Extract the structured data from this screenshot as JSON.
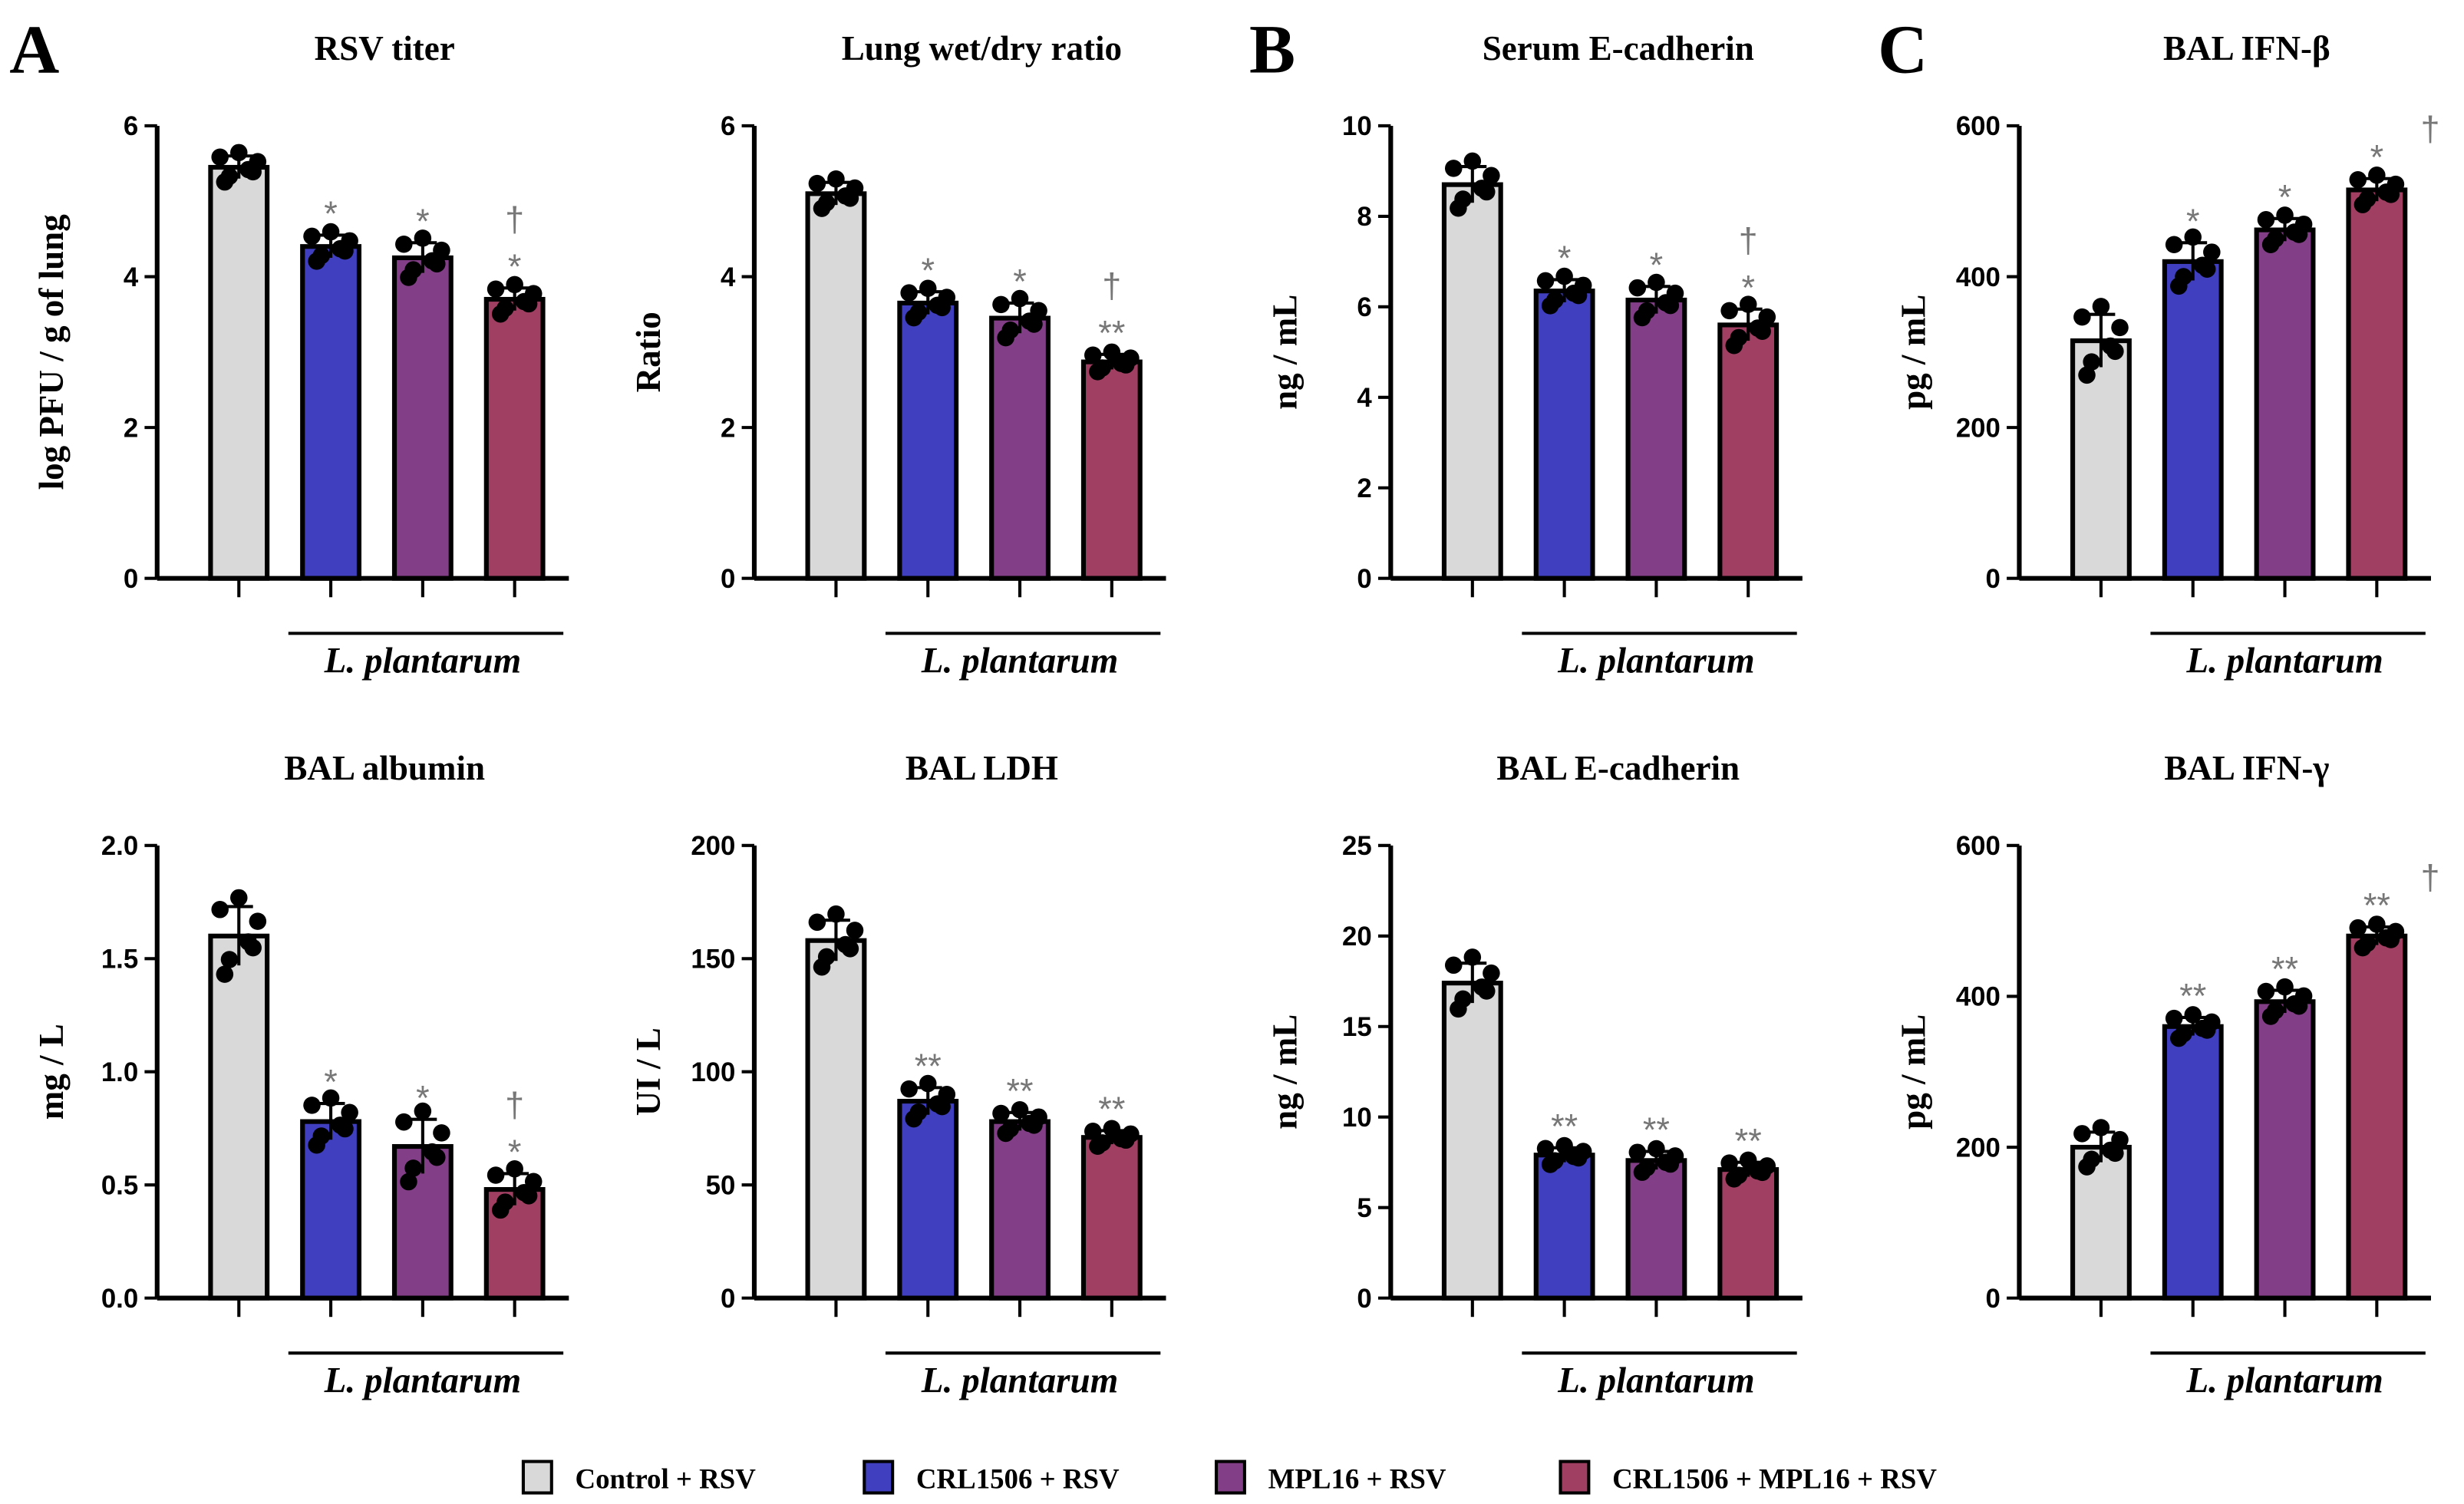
{
  "panel_letters": [
    "A",
    "B",
    "C"
  ],
  "group_label": "L. plantarum",
  "legend": [
    {
      "label": "Control + RSV",
      "color": "#d9d9d9"
    },
    {
      "label": "CRL1506 + RSV",
      "color": "#3f3fbf"
    },
    {
      "label": "MPL16 + RSV",
      "color": "#823f87"
    },
    {
      "label": "CRL1506 + MPL16 + RSV",
      "color": "#a13f63"
    }
  ],
  "chart_data": [
    {
      "type": "bar",
      "title": "RSV titer",
      "ylabel": "log PFU / g of lung",
      "ylim": [
        0,
        6
      ],
      "ticks": [
        "0",
        "2",
        "4",
        "6"
      ],
      "tick_values": [
        0,
        2,
        4,
        6
      ],
      "categories": [
        "Control + RSV",
        "CRL1506 + RSV",
        "MPL16 + RSV",
        "CRL1506 + MPL16 + RSV"
      ],
      "values": [
        5.45,
        4.4,
        4.25,
        3.7
      ],
      "sd": [
        0.15,
        0.15,
        0.2,
        0.15
      ],
      "annotations": [
        "",
        "*",
        "*",
        "*"
      ],
      "dagger": [
        false,
        false,
        false,
        true
      ]
    },
    {
      "type": "bar",
      "title": "Lung wet/dry ratio",
      "ylabel": "Ratio",
      "ylim": [
        0,
        6
      ],
      "ticks": [
        "0",
        "2",
        "4",
        "6"
      ],
      "tick_values": [
        0,
        2,
        4,
        6
      ],
      "categories": [
        "Control + RSV",
        "CRL1506 + RSV",
        "MPL16 + RSV",
        "CRL1506 + MPL16 + RSV"
      ],
      "values": [
        5.1,
        3.65,
        3.45,
        2.87
      ],
      "sd": [
        0.15,
        0.15,
        0.2,
        0.1
      ],
      "annotations": [
        "",
        "*",
        "*",
        "**"
      ],
      "dagger": [
        false,
        false,
        false,
        true
      ]
    },
    {
      "type": "bar",
      "title": "Serum E-cadherin",
      "ylabel": "ng / mL",
      "ylim": [
        0,
        10
      ],
      "ticks": [
        "0",
        "2",
        "4",
        "6",
        "8",
        "10"
      ],
      "tick_values": [
        0,
        2,
        4,
        6,
        8,
        10
      ],
      "categories": [
        "Control + RSV",
        "CRL1506 + RSV",
        "MPL16 + RSV",
        "CRL1506 + MPL16 + RSV"
      ],
      "values": [
        8.7,
        6.35,
        6.15,
        5.6
      ],
      "sd": [
        0.4,
        0.25,
        0.3,
        0.35
      ],
      "annotations": [
        "",
        "*",
        "*",
        "*"
      ],
      "dagger": [
        false,
        false,
        false,
        true
      ]
    },
    {
      "type": "bar",
      "title": "BAL IFN-β",
      "ylabel": "pg / mL",
      "ylim": [
        0,
        600
      ],
      "ticks": [
        "0",
        "200",
        "400",
        "600"
      ],
      "tick_values": [
        0,
        200,
        400,
        600
      ],
      "categories": [
        "Control + RSV",
        "CRL1506 + RSV",
        "MPL16 + RSV",
        "CRL1506 + MPL16 + RSV"
      ],
      "values": [
        315,
        420,
        462,
        515
      ],
      "sd": [
        35,
        25,
        15,
        15
      ],
      "annotations": [
        "",
        "*",
        "*",
        "*"
      ],
      "dagger": [
        false,
        false,
        false,
        true
      ],
      "dagger_side": true
    },
    {
      "type": "bar",
      "title": "BAL albumin",
      "ylabel": "mg / L",
      "ylim": [
        0,
        2
      ],
      "ticks": [
        "0.0",
        "0.5",
        "1.0",
        "1.5",
        "2.0"
      ],
      "tick_values": [
        0,
        0.5,
        1,
        1.5,
        2
      ],
      "categories": [
        "Control + RSV",
        "CRL1506 + RSV",
        "MPL16 + RSV",
        "CRL1506 + MPL16 + RSV"
      ],
      "values": [
        1.6,
        0.78,
        0.67,
        0.48
      ],
      "sd": [
        0.13,
        0.08,
        0.12,
        0.07
      ],
      "annotations": [
        "",
        "*",
        "*",
        "*"
      ],
      "dagger": [
        false,
        false,
        false,
        true
      ]
    },
    {
      "type": "bar",
      "title": "BAL LDH",
      "ylabel": "UI / L",
      "ylim": [
        0,
        200
      ],
      "ticks": [
        "0",
        "50",
        "100",
        "150",
        "200"
      ],
      "tick_values": [
        0,
        50,
        100,
        150,
        200
      ],
      "categories": [
        "Control + RSV",
        "CRL1506 + RSV",
        "MPL16 + RSV",
        "CRL1506 + MPL16 + RSV"
      ],
      "values": [
        158,
        87,
        78,
        71
      ],
      "sd": [
        9,
        6,
        4,
        3
      ],
      "annotations": [
        "",
        "**",
        "**",
        "**"
      ],
      "dagger": [
        false,
        false,
        false,
        false
      ]
    },
    {
      "type": "bar",
      "title": "BAL E-cadherin",
      "ylabel": "ng / mL",
      "ylim": [
        0,
        25
      ],
      "ticks": [
        "0",
        "5",
        "10",
        "15",
        "20",
        "25"
      ],
      "tick_values": [
        0,
        5,
        10,
        15,
        20,
        25
      ],
      "categories": [
        "Control + RSV",
        "CRL1506 + RSV",
        "MPL16 + RSV",
        "CRL1506 + MPL16 + RSV"
      ],
      "values": [
        17.4,
        7.9,
        7.6,
        7.1
      ],
      "sd": [
        1.1,
        0.4,
        0.5,
        0.4
      ],
      "annotations": [
        "",
        "**",
        "**",
        "**"
      ],
      "dagger": [
        false,
        false,
        false,
        false
      ]
    },
    {
      "type": "bar",
      "title": "BAL IFN-γ",
      "ylabel": "pg / mL",
      "ylim": [
        0,
        600
      ],
      "ticks": [
        "0",
        "200",
        "400",
        "600"
      ],
      "tick_values": [
        0,
        200,
        400,
        600
      ],
      "categories": [
        "Control + RSV",
        "CRL1506 + RSV",
        "MPL16 + RSV",
        "CRL1506 + MPL16 + RSV"
      ],
      "values": [
        200,
        360,
        393,
        480
      ],
      "sd": [
        20,
        12,
        15,
        12
      ],
      "annotations": [
        "",
        "**",
        "**",
        "**"
      ],
      "dagger": [
        false,
        false,
        false,
        true
      ],
      "dagger_side": true
    }
  ]
}
